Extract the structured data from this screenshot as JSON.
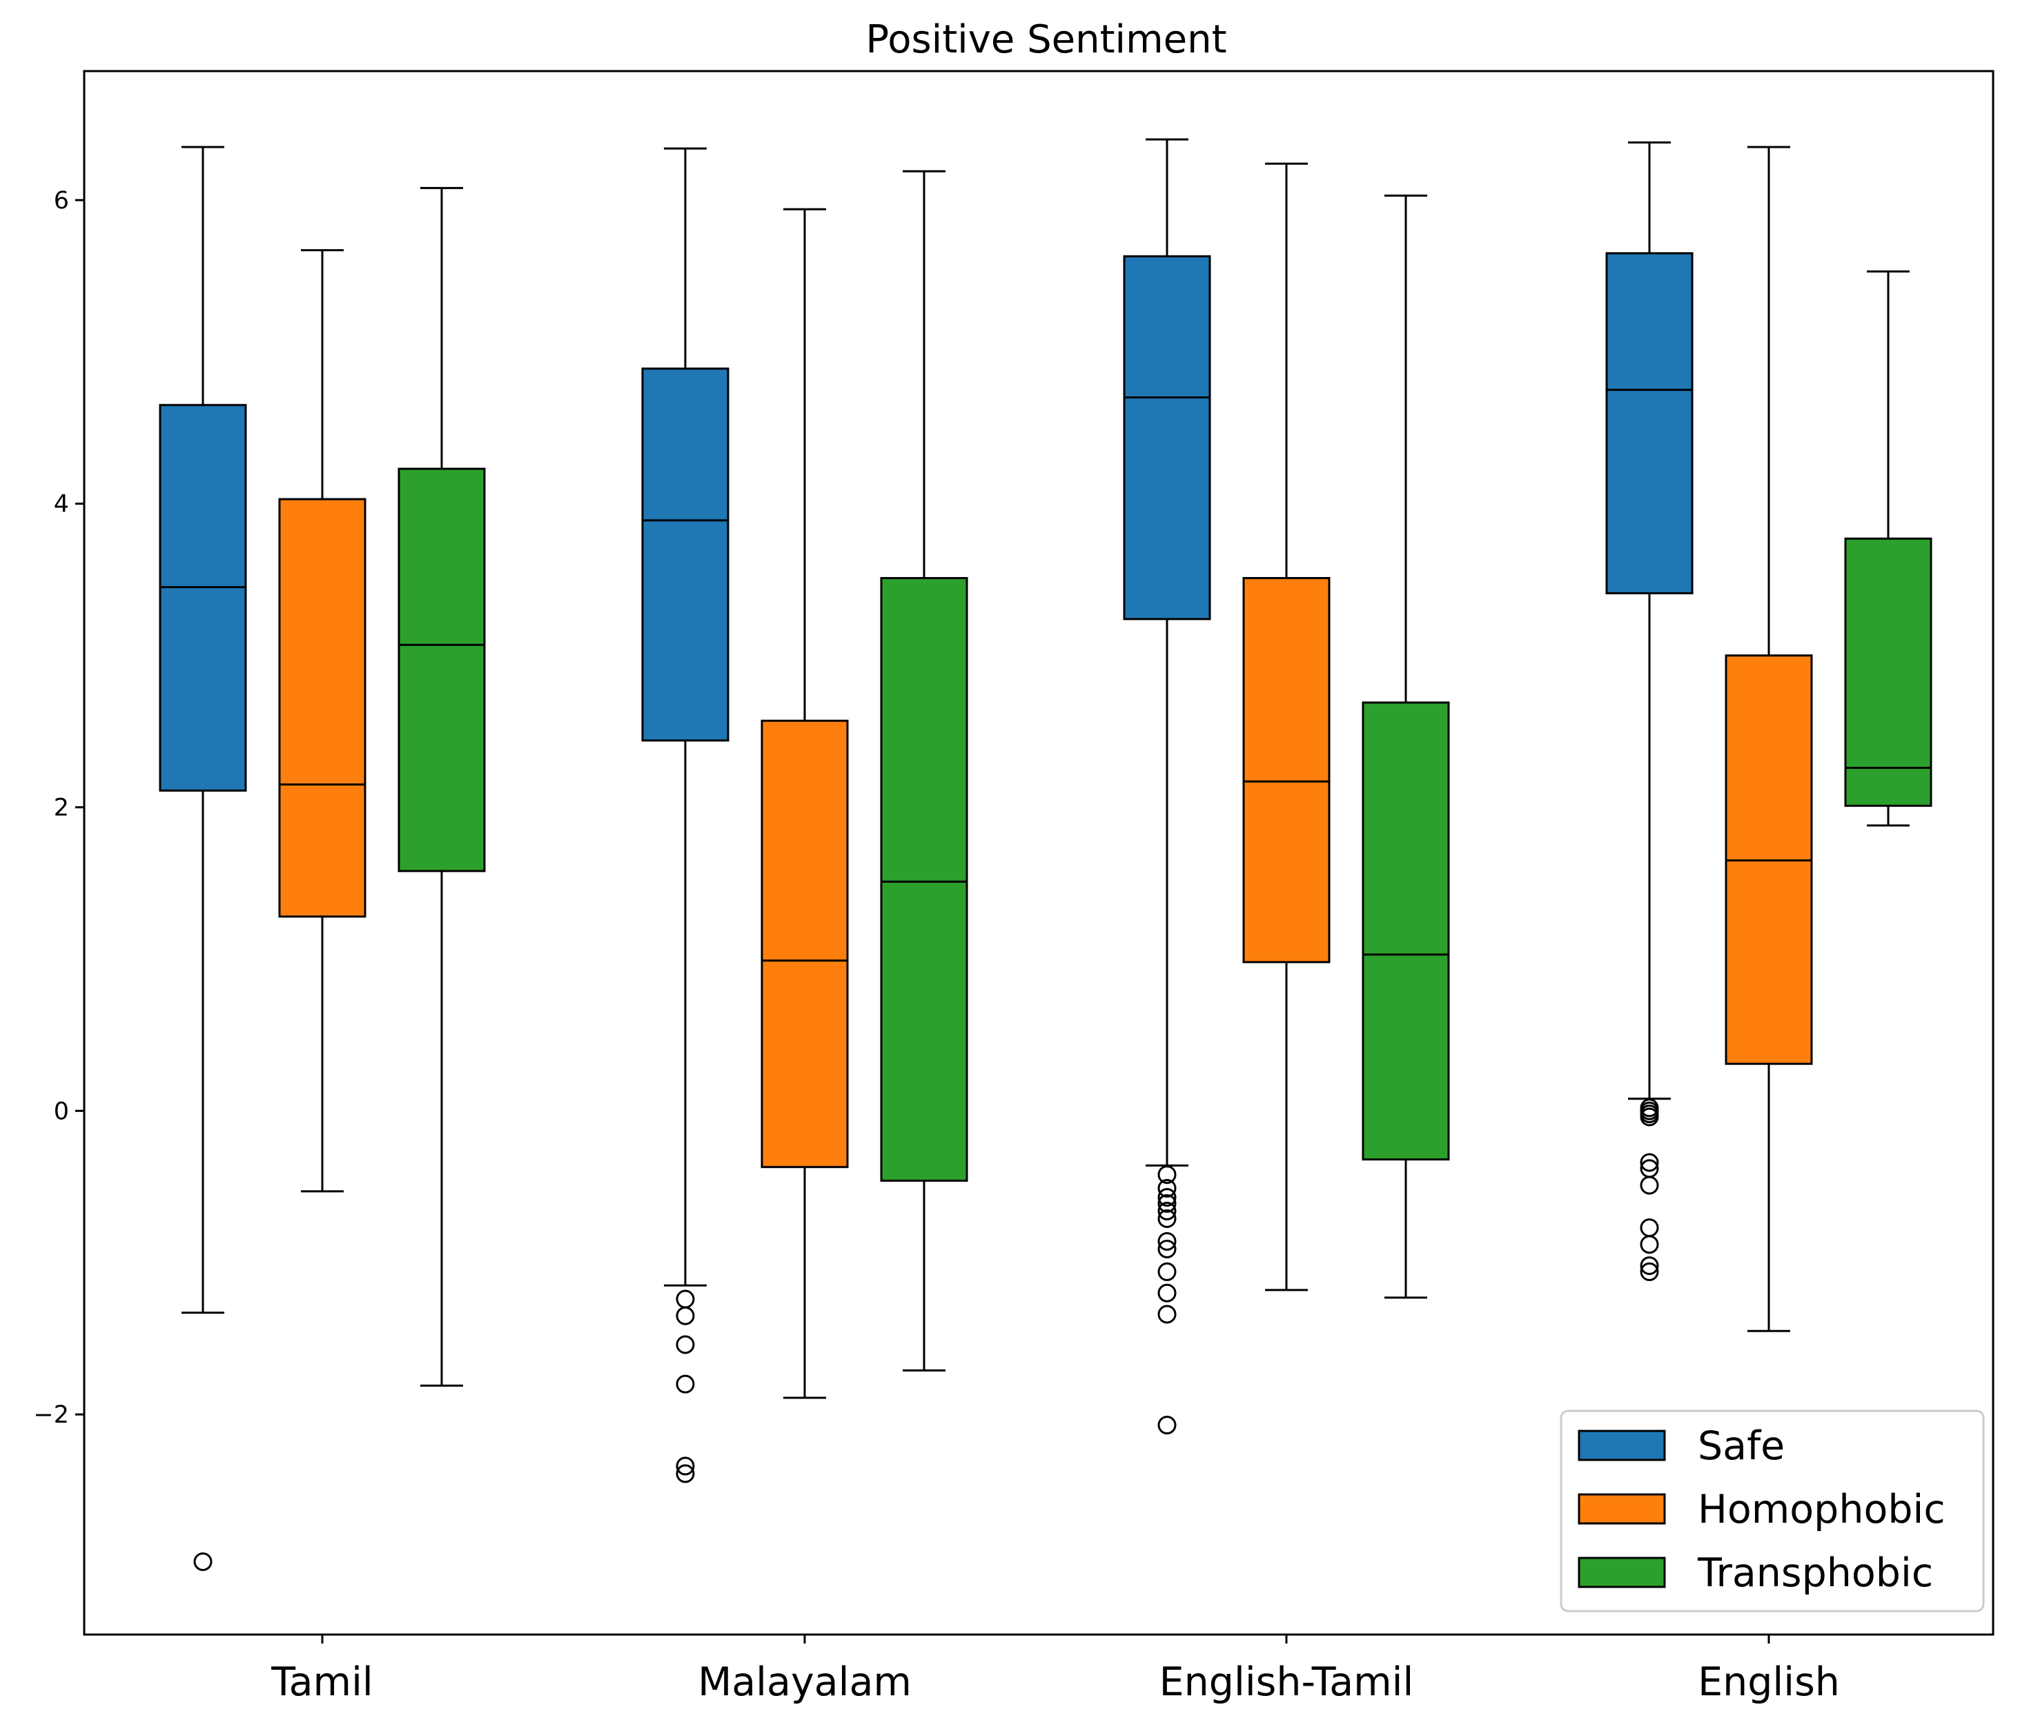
{
  "chart_data": {
    "type": "boxplot",
    "title": "Positive Sentiment",
    "xlabel": "",
    "ylabel": "",
    "categories": [
      "Tamil",
      "Malayalam",
      "English-Tamil",
      "English"
    ],
    "ylim": [
      -3.45,
      6.85
    ],
    "yticks": [
      -2,
      0,
      2,
      4,
      6
    ],
    "ytick_labels": [
      "−2",
      "0",
      "2",
      "4",
      "6"
    ],
    "grid": false,
    "legend_position": "lower-right",
    "series": [
      {
        "name": "Safe",
        "color": "#1f77b4",
        "boxes": [
          {
            "whislo": -1.33,
            "q1": 2.11,
            "med": 3.45,
            "q3": 4.65,
            "whishi": 6.35,
            "fliers": [
              -2.97
            ]
          },
          {
            "whislo": -1.15,
            "q1": 2.44,
            "med": 3.89,
            "q3": 4.89,
            "whishi": 6.34,
            "fliers": [
              -1.24,
              -1.35,
              -1.54,
              -1.8,
              -2.34,
              -2.39
            ]
          },
          {
            "whislo": -0.36,
            "q1": 3.24,
            "med": 4.7,
            "q3": 5.63,
            "whishi": 6.4,
            "fliers": [
              -0.42,
              -0.51,
              -0.57,
              -0.61,
              -0.66,
              -0.71,
              -0.86,
              -0.91,
              -1.06,
              -1.2,
              -1.34,
              -2.07
            ]
          },
          {
            "whislo": 0.08,
            "q1": 3.41,
            "med": 4.75,
            "q3": 5.65,
            "whishi": 6.38,
            "fliers": [
              0.02,
              0.0,
              -0.02,
              -0.04,
              -0.34,
              -0.38,
              -0.49,
              -0.77,
              -0.88,
              -1.02,
              -1.06
            ]
          }
        ]
      },
      {
        "name": "Homophobic",
        "color": "#ff7f0e",
        "boxes": [
          {
            "whislo": -0.53,
            "q1": 1.28,
            "med": 2.15,
            "q3": 4.03,
            "whishi": 5.67,
            "fliers": []
          },
          {
            "whislo": -1.89,
            "q1": -0.37,
            "med": 0.99,
            "q3": 2.57,
            "whishi": 5.94,
            "fliers": []
          },
          {
            "whislo": -1.18,
            "q1": 0.98,
            "med": 2.17,
            "q3": 3.51,
            "whishi": 6.24,
            "fliers": []
          },
          {
            "whislo": -1.45,
            "q1": 0.31,
            "med": 1.65,
            "q3": 3.0,
            "whishi": 6.35,
            "fliers": []
          }
        ]
      },
      {
        "name": "Transphobic",
        "color": "#2ca02c",
        "boxes": [
          {
            "whislo": -1.81,
            "q1": 1.58,
            "med": 3.07,
            "q3": 4.23,
            "whishi": 6.08,
            "fliers": []
          },
          {
            "whislo": -1.71,
            "q1": -0.46,
            "med": 1.51,
            "q3": 3.51,
            "whishi": 6.19,
            "fliers": []
          },
          {
            "whislo": -1.23,
            "q1": -0.32,
            "med": 1.03,
            "q3": 2.69,
            "whishi": 6.03,
            "fliers": []
          },
          {
            "whislo": 1.88,
            "q1": 2.01,
            "med": 2.26,
            "q3": 3.77,
            "whishi": 5.53,
            "fliers": []
          }
        ]
      }
    ]
  }
}
